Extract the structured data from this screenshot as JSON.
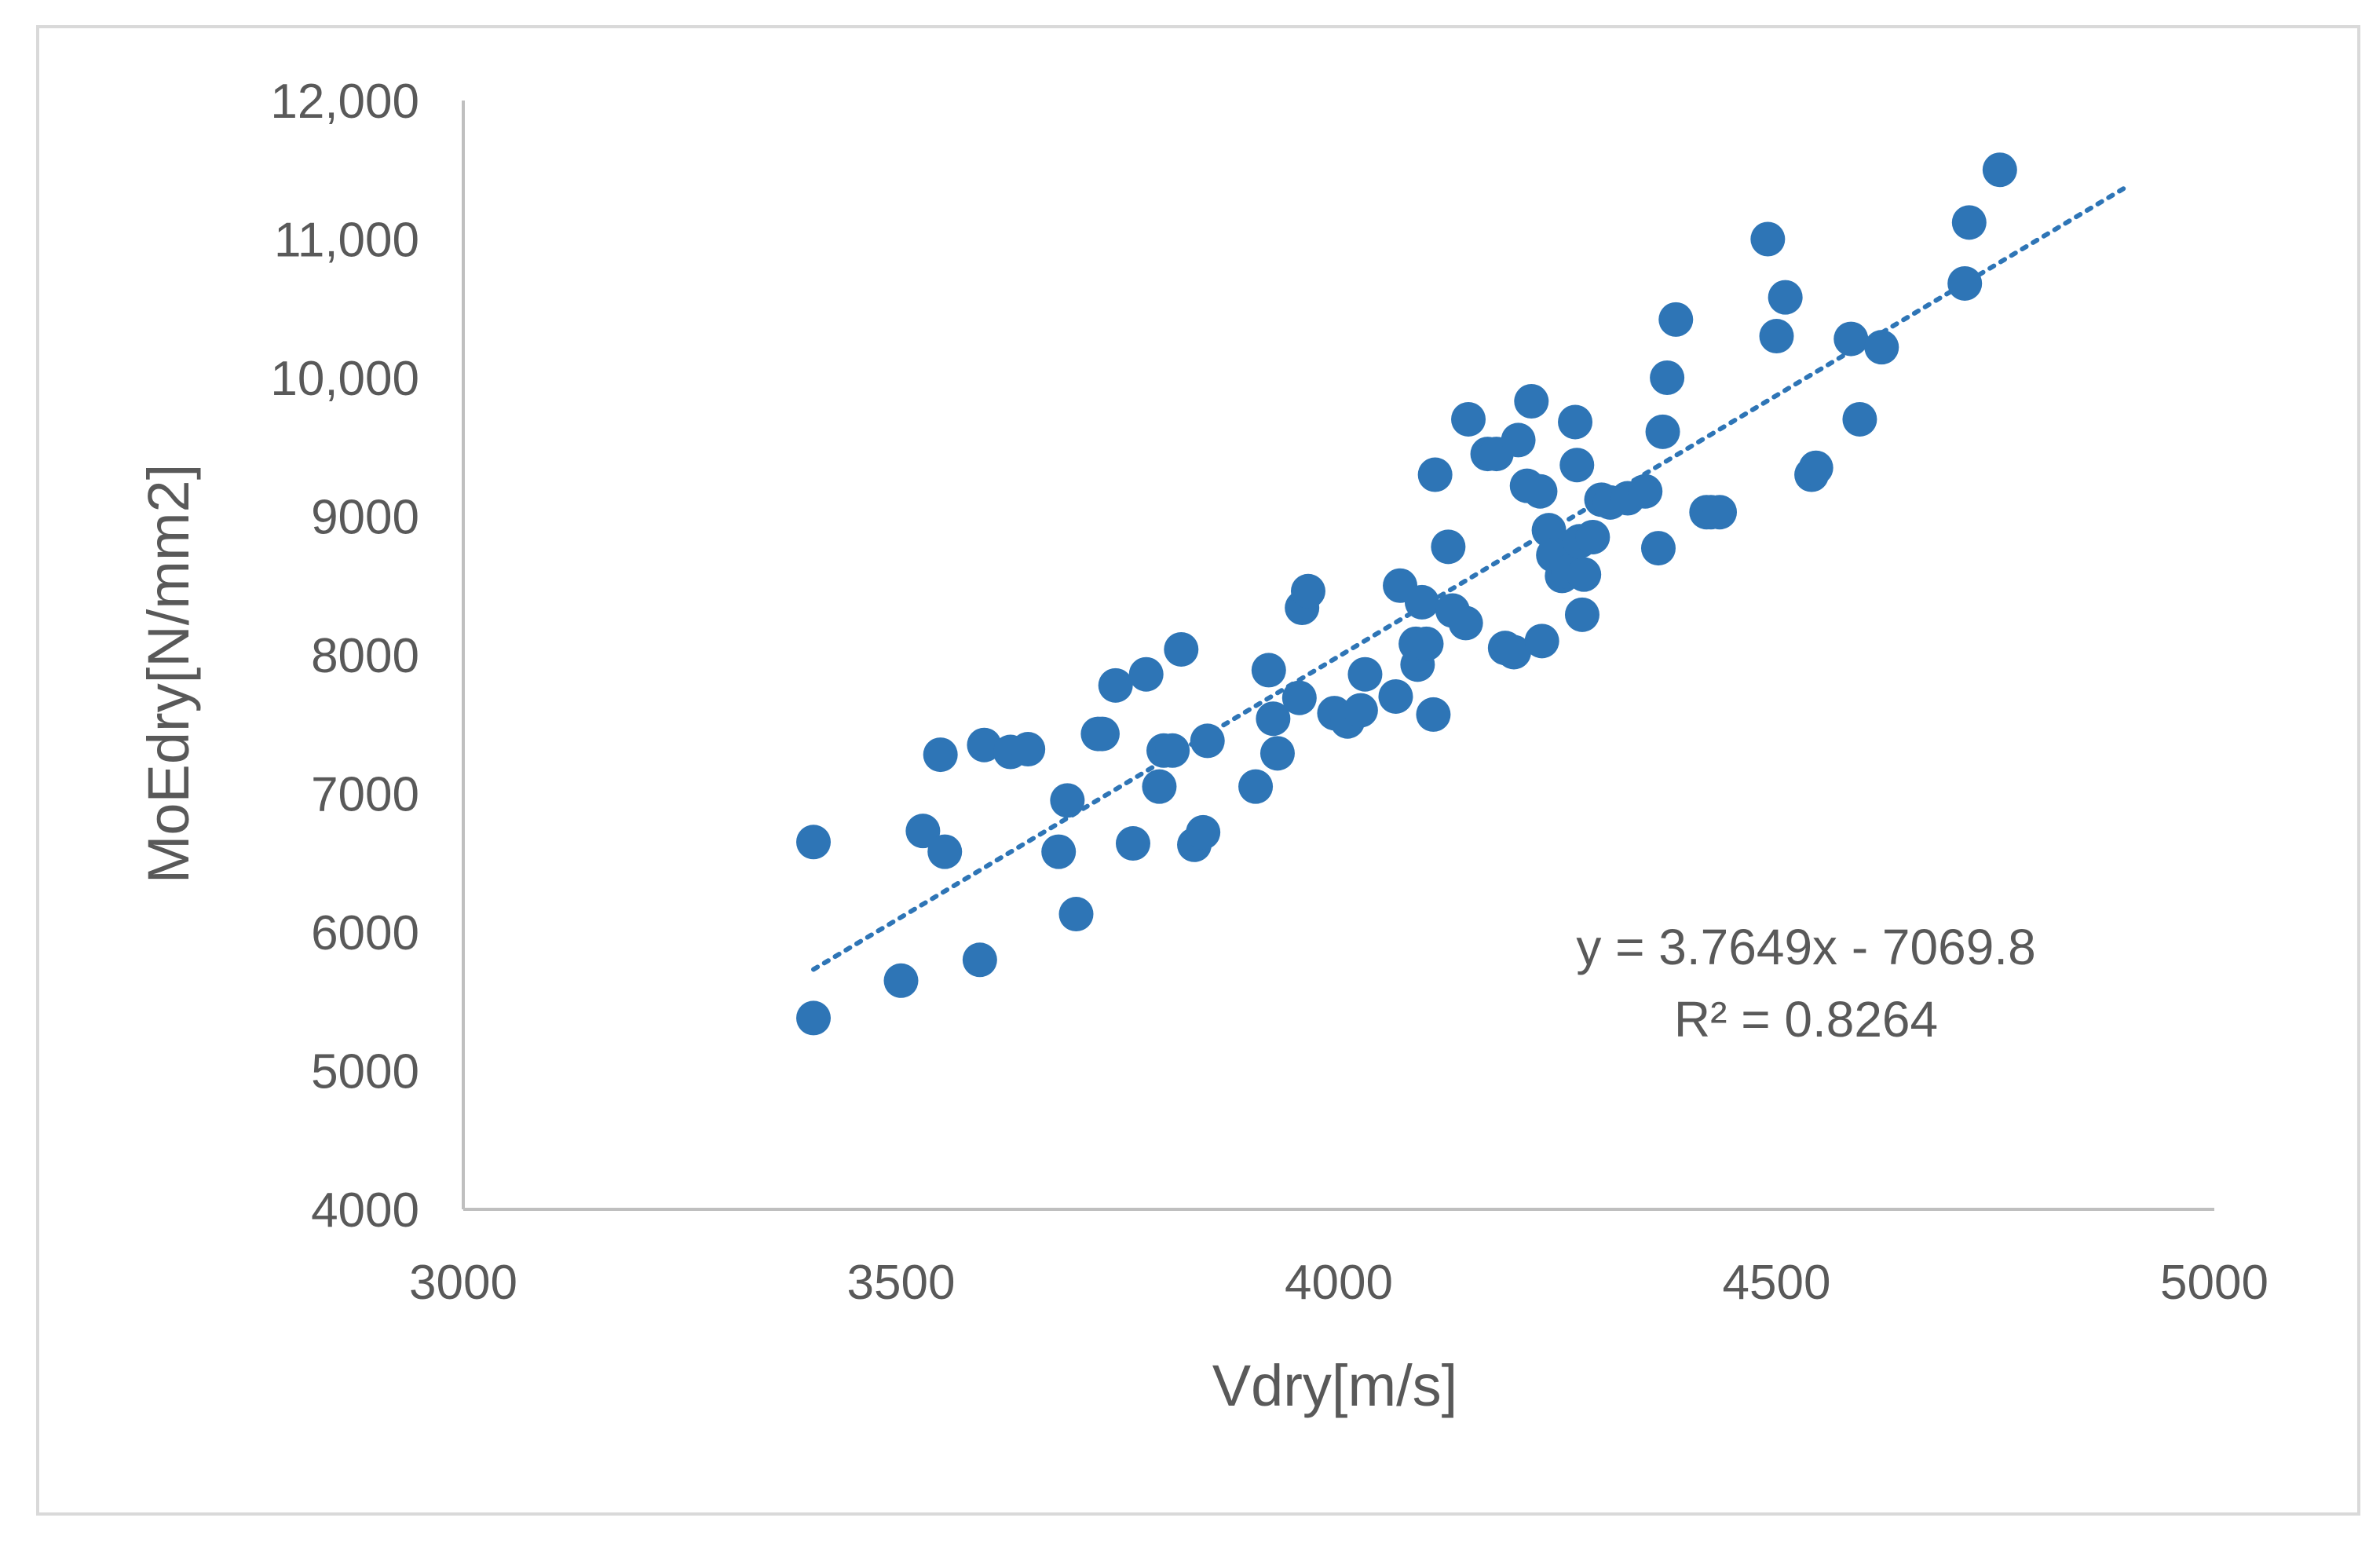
{
  "chart_data": {
    "type": "scatter",
    "title": "",
    "xlabel": "Vdry[m/s]",
    "ylabel": "MoEdry[N/mm2]",
    "xlim": [
      3000,
      5000
    ],
    "ylim": [
      4000,
      12000
    ],
    "x_ticks": [
      "3000",
      "3500",
      "4000",
      "4500",
      "5000"
    ],
    "y_ticks": [
      "4000",
      "5000",
      "6000",
      "7000",
      "8000",
      "9000",
      "10,000",
      "11,000",
      "12,000"
    ],
    "grid": false,
    "legend": "none",
    "colors": {
      "points": "#2e75b6",
      "trendline": "#2e75b6",
      "axis": "#bfbfbf",
      "text": "#595959"
    },
    "series": [
      {
        "x": [
          3400,
          3400,
          3500,
          3525,
          3545,
          3550,
          3590,
          3595,
          3625,
          3645,
          3680,
          3690,
          3700,
          3725,
          3730,
          3745,
          3765,
          3780,
          3795,
          3800,
          3810,
          3820,
          3835,
          3845,
          3850,
          3905,
          3920,
          3925,
          3930,
          3955,
          3958,
          3965,
          3995,
          4010,
          4025,
          4030,
          4065,
          4070,
          4088,
          4090,
          4095,
          4100,
          4108,
          4110,
          4125,
          4130,
          4145,
          4148,
          4170,
          4180,
          4190,
          4200,
          4205,
          4215,
          4220,
          4230,
          4232,
          4240,
          4245,
          4255,
          4258,
          4260,
          4262,
          4270,
          4272,
          4275,
          4278,
          4280,
          4290,
          4300,
          4310,
          4330,
          4350,
          4365,
          4370,
          4375,
          4385,
          4420,
          4425,
          4435,
          4490,
          4500,
          4510,
          4540,
          4545,
          4585,
          4595,
          4620,
          4715,
          4720,
          4755
        ],
        "y": [
          6650,
          5380,
          5650,
          6730,
          7280,
          6580,
          5800,
          7350,
          7300,
          7320,
          6580,
          6950,
          6130,
          7430,
          7430,
          7780,
          6640,
          7860,
          7050,
          7310,
          7310,
          8040,
          6630,
          6720,
          7380,
          7050,
          7890,
          7540,
          7290,
          7690,
          8340,
          8460,
          7580,
          7520,
          7600,
          7860,
          7700,
          8500,
          8080,
          7930,
          8380,
          8080,
          7570,
          9300,
          8780,
          8320,
          8230,
          9700,
          9450,
          9450,
          8050,
          8020,
          9550,
          9220,
          9830,
          9180,
          8100,
          8900,
          8720,
          8570,
          8630,
          8650,
          8600,
          9680,
          9370,
          8820,
          8290,
          8580,
          8850,
          9120,
          9100,
          9130,
          9180,
          8770,
          9610,
          10000,
          10420,
          9030,
          9030,
          9030,
          11000,
          10300,
          10580,
          9300,
          9350,
          10280,
          9700,
          10220,
          10680,
          11120,
          11500
        ]
      }
    ],
    "trendline": {
      "type": "linear",
      "style": "dotted",
      "slope": 3.7649,
      "intercept": -7069.8,
      "x_range": [
        3400,
        4900
      ]
    },
    "annotations": {
      "equation": "y = 3.7649x - 7069.8",
      "r_squared": "R² = 0.8264"
    }
  }
}
